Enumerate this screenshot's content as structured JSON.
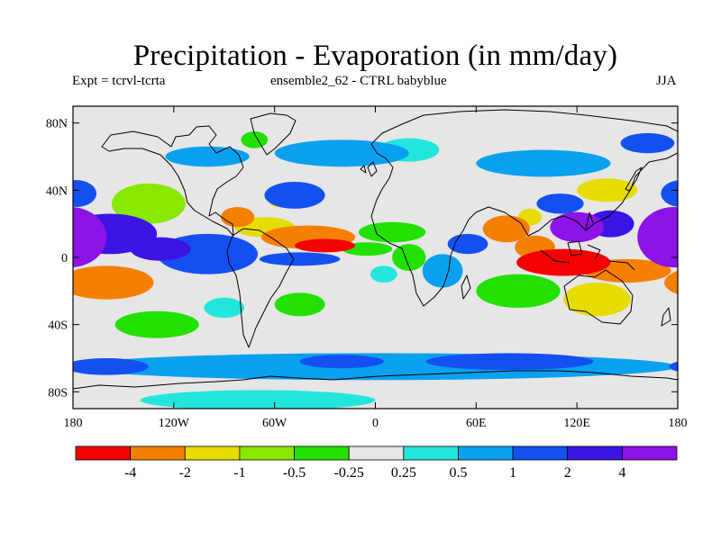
{
  "chart_data": {
    "type": "heatmap",
    "title": "Precipitation - Evaporation (in mm/day)",
    "subtitle_left": "Expt = tcrvl-tcrta",
    "subtitle_center": "ensemble2_62 - CTRL babyblue",
    "season": "JJA",
    "xlim": [
      -180,
      180
    ],
    "ylim": [
      -90,
      90
    ],
    "x_ticks": [
      {
        "value": -180,
        "label": "180"
      },
      {
        "value": -120,
        "label": "120W"
      },
      {
        "value": -60,
        "label": "60W"
      },
      {
        "value": 0,
        "label": "0"
      },
      {
        "value": 60,
        "label": "60E"
      },
      {
        "value": 120,
        "label": "120E"
      },
      {
        "value": 180,
        "label": "180"
      }
    ],
    "y_ticks": [
      {
        "value": 80,
        "label": "80N"
      },
      {
        "value": 40,
        "label": "40N"
      },
      {
        "value": 0,
        "label": "0"
      },
      {
        "value": -40,
        "label": "40S"
      },
      {
        "value": -80,
        "label": "80S"
      }
    ],
    "levels": [
      {
        "label": "-4",
        "value": -4
      },
      {
        "label": "-2",
        "value": -2
      },
      {
        "label": "-1",
        "value": -1
      },
      {
        "label": "-0.5",
        "value": -0.5
      },
      {
        "label": "-0.25",
        "value": -0.25
      },
      {
        "label": "0.25",
        "value": 0.25
      },
      {
        "label": "0.5",
        "value": 0.5
      },
      {
        "label": "1",
        "value": 1
      },
      {
        "label": "2",
        "value": 2
      },
      {
        "label": "4",
        "value": 4
      }
    ],
    "colors": [
      "#f50000",
      "#f58000",
      "#e6dc00",
      "#88e800",
      "#22e000",
      "#e6e6e6",
      "#22e6dc",
      "#0aa0f0",
      "#1450f0",
      "#3c14e6",
      "#8c14e6"
    ],
    "field_features": [
      {
        "lon": 178,
        "lat": 12,
        "rx": 22,
        "ry": 18,
        "value": 5
      },
      {
        "lon": -158,
        "lat": 14,
        "rx": 28,
        "ry": 12,
        "value": 3.5
      },
      {
        "lon": -128,
        "lat": 5,
        "rx": 18,
        "ry": 7,
        "value": 2.5
      },
      {
        "lon": -178,
        "lat": 38,
        "rx": 12,
        "ry": 8,
        "value": 1.2
      },
      {
        "lon": -100,
        "lat": 2,
        "rx": 30,
        "ry": 12,
        "value": 1.8
      },
      {
        "lon": -160,
        "lat": -15,
        "rx": 28,
        "ry": 10,
        "value": -2.5
      },
      {
        "lon": -135,
        "lat": 32,
        "rx": 22,
        "ry": 12,
        "value": -0.8
      },
      {
        "lon": -82,
        "lat": 24,
        "rx": 10,
        "ry": 6,
        "value": -2.5
      },
      {
        "lon": -66,
        "lat": 18,
        "rx": 18,
        "ry": 6,
        "value": -1.6
      },
      {
        "lon": -40,
        "lat": 12,
        "rx": 28,
        "ry": 7,
        "value": -3
      },
      {
        "lon": -30,
        "lat": 7,
        "rx": 18,
        "ry": 4,
        "value": -4.5
      },
      {
        "lon": -48,
        "lat": 37,
        "rx": 18,
        "ry": 8,
        "value": 1.6
      },
      {
        "lon": -58,
        "lat": 35,
        "rx": 6,
        "ry": 5,
        "value": -1.5
      },
      {
        "lon": -45,
        "lat": -1,
        "rx": 24,
        "ry": 4,
        "value": 1.5
      },
      {
        "lon": -20,
        "lat": 62,
        "rx": 40,
        "ry": 8,
        "value": 0.5
      },
      {
        "lon": -100,
        "lat": 60,
        "rx": 25,
        "ry": 6,
        "value": 0.6
      },
      {
        "lon": -72,
        "lat": 70,
        "rx": 8,
        "ry": 5,
        "value": -0.5
      },
      {
        "lon": 20,
        "lat": 64,
        "rx": 18,
        "ry": 7,
        "value": 0.4
      },
      {
        "lon": 100,
        "lat": 56,
        "rx": 40,
        "ry": 8,
        "value": 0.5
      },
      {
        "lon": 162,
        "lat": 68,
        "rx": 16,
        "ry": 6,
        "value": 1.2
      },
      {
        "lon": -130,
        "lat": -40,
        "rx": 25,
        "ry": 8,
        "value": -0.4
      },
      {
        "lon": -45,
        "lat": -28,
        "rx": 15,
        "ry": 7,
        "value": -0.4
      },
      {
        "lon": -90,
        "lat": -30,
        "rx": 12,
        "ry": 6,
        "value": 0.4
      },
      {
        "lon": 0,
        "lat": -65,
        "rx": 180,
        "ry": 8,
        "value": 0.5
      },
      {
        "lon": 80,
        "lat": -62,
        "rx": 50,
        "ry": 5,
        "value": 1.1
      },
      {
        "lon": -20,
        "lat": -62,
        "rx": 25,
        "ry": 4,
        "value": 1.2
      },
      {
        "lon": -160,
        "lat": -65,
        "rx": 25,
        "ry": 5,
        "value": 1.3
      },
      {
        "lon": -70,
        "lat": -85,
        "rx": 70,
        "ry": 6,
        "value": 0.4
      },
      {
        "lon": 112,
        "lat": -3,
        "rx": 28,
        "ry": 8,
        "value": -5
      },
      {
        "lon": 95,
        "lat": 6,
        "rx": 12,
        "ry": 7,
        "value": -2.5
      },
      {
        "lon": 150,
        "lat": -8,
        "rx": 26,
        "ry": 7,
        "value": -3.5
      },
      {
        "lon": 132,
        "lat": -25,
        "rx": 20,
        "ry": 10,
        "value": -1.5
      },
      {
        "lon": 85,
        "lat": -20,
        "rx": 25,
        "ry": 10,
        "value": -0.5
      },
      {
        "lon": 120,
        "lat": 18,
        "rx": 16,
        "ry": 9,
        "value": 4.5
      },
      {
        "lon": 140,
        "lat": 20,
        "rx": 14,
        "ry": 8,
        "value": 3
      },
      {
        "lon": 78,
        "lat": 17,
        "rx": 14,
        "ry": 8,
        "value": -3
      },
      {
        "lon": 92,
        "lat": 24,
        "rx": 7,
        "ry": 5,
        "value": -2
      },
      {
        "lon": 138,
        "lat": 40,
        "rx": 18,
        "ry": 7,
        "value": -1.5
      },
      {
        "lon": 110,
        "lat": 32,
        "rx": 14,
        "ry": 6,
        "value": 1.5
      },
      {
        "lon": 55,
        "lat": 8,
        "rx": 12,
        "ry": 6,
        "value": 1.2
      },
      {
        "lon": 40,
        "lat": -8,
        "rx": 12,
        "ry": 10,
        "value": 0.6
      },
      {
        "lon": 20,
        "lat": 0,
        "rx": 10,
        "ry": 8,
        "value": -0.35
      },
      {
        "lon": 10,
        "lat": 15,
        "rx": 20,
        "ry": 6,
        "value": -0.35
      },
      {
        "lon": 5,
        "lat": -10,
        "rx": 8,
        "ry": 5,
        "value": 0.35
      },
      {
        "lon": -5,
        "lat": 5,
        "rx": 15,
        "ry": 4,
        "value": -0.35
      }
    ]
  }
}
